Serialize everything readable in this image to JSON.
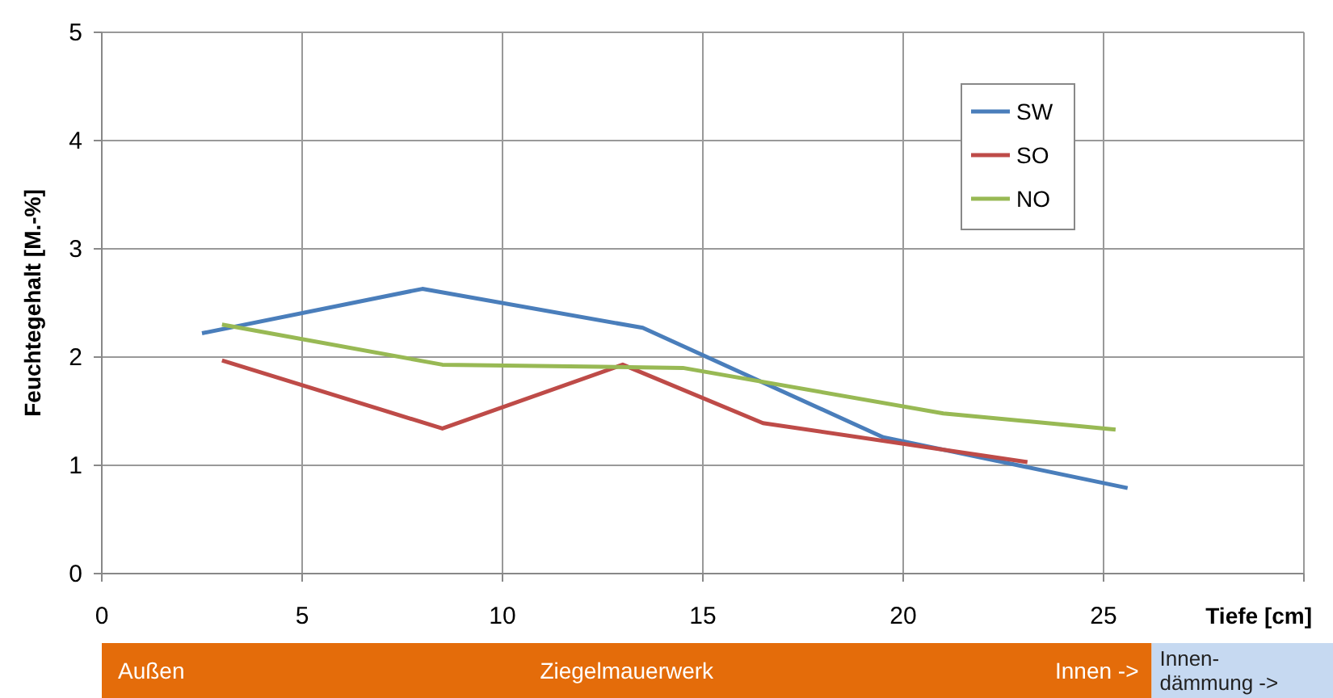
{
  "chart_data": {
    "type": "line",
    "xlabel": "Tiefe [cm]",
    "ylabel": "Feuchtegehalt [M.-%]",
    "xlim": [
      0,
      30
    ],
    "xticks": [
      0,
      5,
      10,
      15,
      20,
      25,
      {
        "value": 30,
        "label": null
      }
    ],
    "ylim": [
      0,
      5
    ],
    "yticks": [
      0,
      1,
      2,
      3,
      4,
      5
    ],
    "grid": true,
    "legend": "top right",
    "line_style": "solid",
    "marker": "none",
    "series": [
      {
        "name": "SW",
        "color": "#4a7ebb",
        "x": [
          2.5,
          8,
          13.5,
          19.5,
          25.6
        ],
        "values": [
          2.22,
          2.63,
          2.27,
          1.26,
          0.79
        ]
      },
      {
        "name": "SO",
        "color": "#be4b48",
        "x": [
          3,
          8.5,
          13,
          16.5,
          23.1
        ],
        "values": [
          1.97,
          1.34,
          1.93,
          1.39,
          1.03
        ]
      },
      {
        "name": "NO",
        "color": "#98b954",
        "x": [
          3,
          8.5,
          14.5,
          21,
          25.3
        ],
        "values": [
          2.3,
          1.93,
          1.9,
          1.48,
          1.33
        ]
      }
    ],
    "annotations": [
      "Außen",
      "Ziegelmauerwerk",
      "Innen ->",
      "Innen-dämmung ->"
    ]
  }
}
